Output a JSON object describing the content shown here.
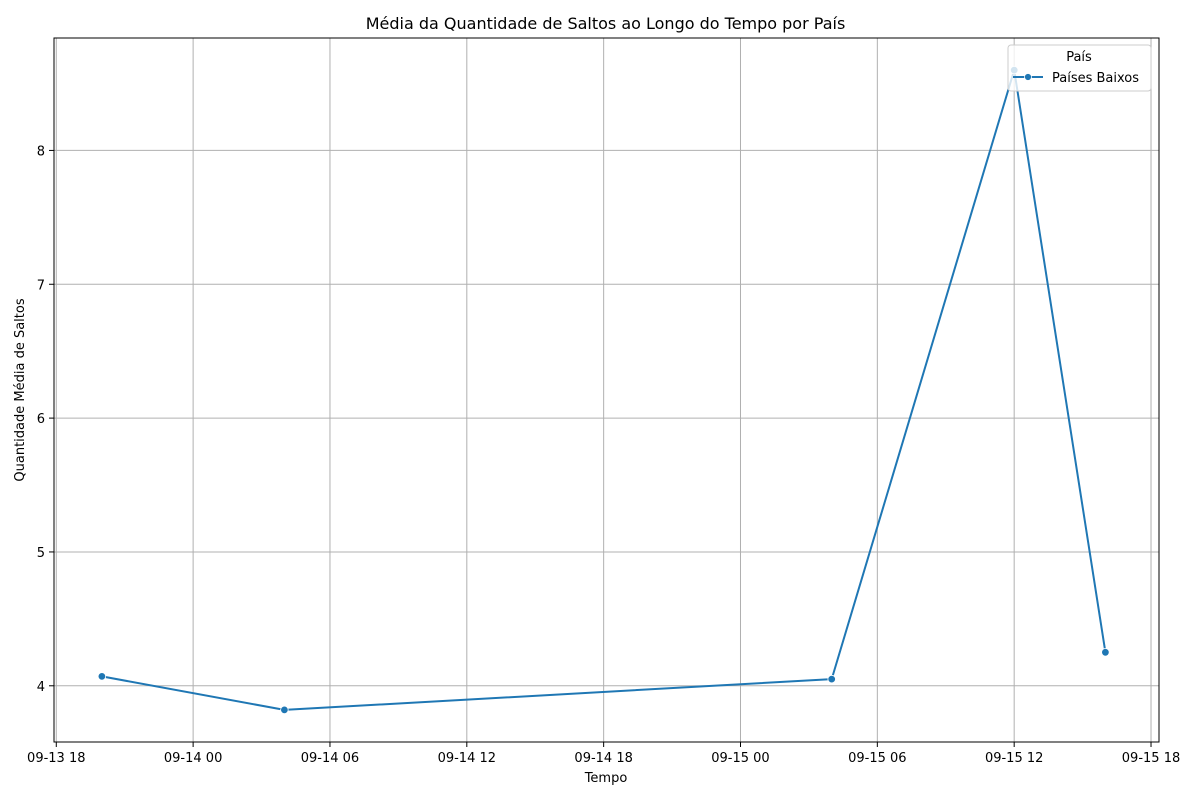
{
  "chart_data": {
    "type": "line",
    "title": "Média da Quantidade de Saltos ao Longo do Tempo por País",
    "xlabel": "Tempo",
    "ylabel": "Quantidade Média de Saltos",
    "x_ticks": [
      "09-13 18",
      "09-14 00",
      "09-14 06",
      "09-14 12",
      "09-14 18",
      "09-15 00",
      "09-15 06",
      "09-15 12",
      "09-15 18"
    ],
    "x_tick_hours": [
      18,
      24,
      30,
      36,
      42,
      48,
      54,
      60,
      66
    ],
    "xlim_hours": [
      17.9,
      66.35
    ],
    "y_ticks": [
      4,
      5,
      6,
      7,
      8
    ],
    "ylim": [
      3.58,
      8.84
    ],
    "grid": true,
    "legend": {
      "title": "País",
      "placement": "upper right"
    },
    "series": [
      {
        "name": "Países Baixos",
        "color": "#1f77b4",
        "x_hours": [
          20,
          28,
          52,
          60,
          64
        ],
        "values": [
          4.07,
          3.82,
          4.05,
          8.6,
          4.25
        ]
      }
    ]
  }
}
